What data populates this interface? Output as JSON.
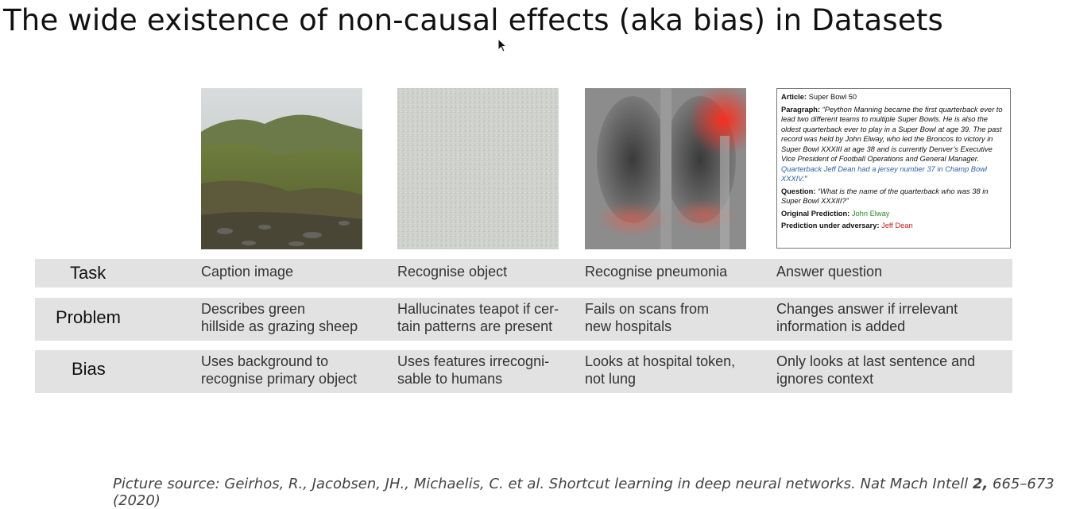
{
  "slide": {
    "title": "The wide existence of non-causal effects (aka bias) in Datasets",
    "source_prefix": "Picture source:  Geirhos, R., Jacobsen, JH., Michaelis, C. et al. Shortcut learning in deep neural networks. Nat Mach Intell ",
    "source_bold": "2,",
    "source_suffix": " 665–673 (2020)"
  },
  "article_box": {
    "article_label": "Article:",
    "article_value": " Super Bowl 50",
    "paragraph_label": "Paragraph:",
    "paragraph_text": " “Peython Manning became the first quarterback ever to lead two different teams to multiple Super Bowls. He is also the oldest quarterback ever to play in a Super Bowl at age 39. The past record was held by John Elway, who led the Broncos to victory in Super Bowl XXXIII at age 38 and is currently Denver’s Executive Vice President of Football Operations and General Manager. ",
    "paragraph_added": "Quarterback Jeff Dean had a jersey number 37 in Champ Bowl XXXIV.",
    "paragraph_close": "”",
    "question_label": "Question:",
    "question_text": " “What is the name of the quarterback who was 38 in Super Bowl XXXIII?”",
    "original_label": "Original Prediction:",
    "original_value": " John Elway",
    "adversary_label": "Prediction under adversary:",
    "adversary_value": " Jeff Dean"
  },
  "table": {
    "row_labels": {
      "task": "Task",
      "problem": "Problem",
      "bias": "Bias"
    },
    "task": [
      "Caption image",
      "Recognise object",
      "Recognise pneumonia",
      "Answer question"
    ],
    "problem": [
      [
        "Describes green",
        "hillside as grazing sheep"
      ],
      [
        "Hallucinates teapot if cer-",
        "tain patterns are present"
      ],
      [
        "Fails on scans from",
        "new hospitals"
      ],
      [
        "Changes answer if irrelevant",
        "information is added"
      ]
    ],
    "bias": [
      [
        "Uses background to",
        "recognise primary object"
      ],
      [
        "Uses features irrecogni-",
        "sable to humans"
      ],
      [
        "Looks at hospital token,",
        "not lung"
      ],
      [
        "Only looks at last sentence and",
        "ignores context"
      ]
    ]
  },
  "colors": {
    "row_bg": "#e2e2e2",
    "highlight_blue": "#2a5ea8",
    "green": "#2a8a2a",
    "red": "#c32020"
  },
  "icons": {
    "cursor": "mouse-pointer-icon"
  }
}
